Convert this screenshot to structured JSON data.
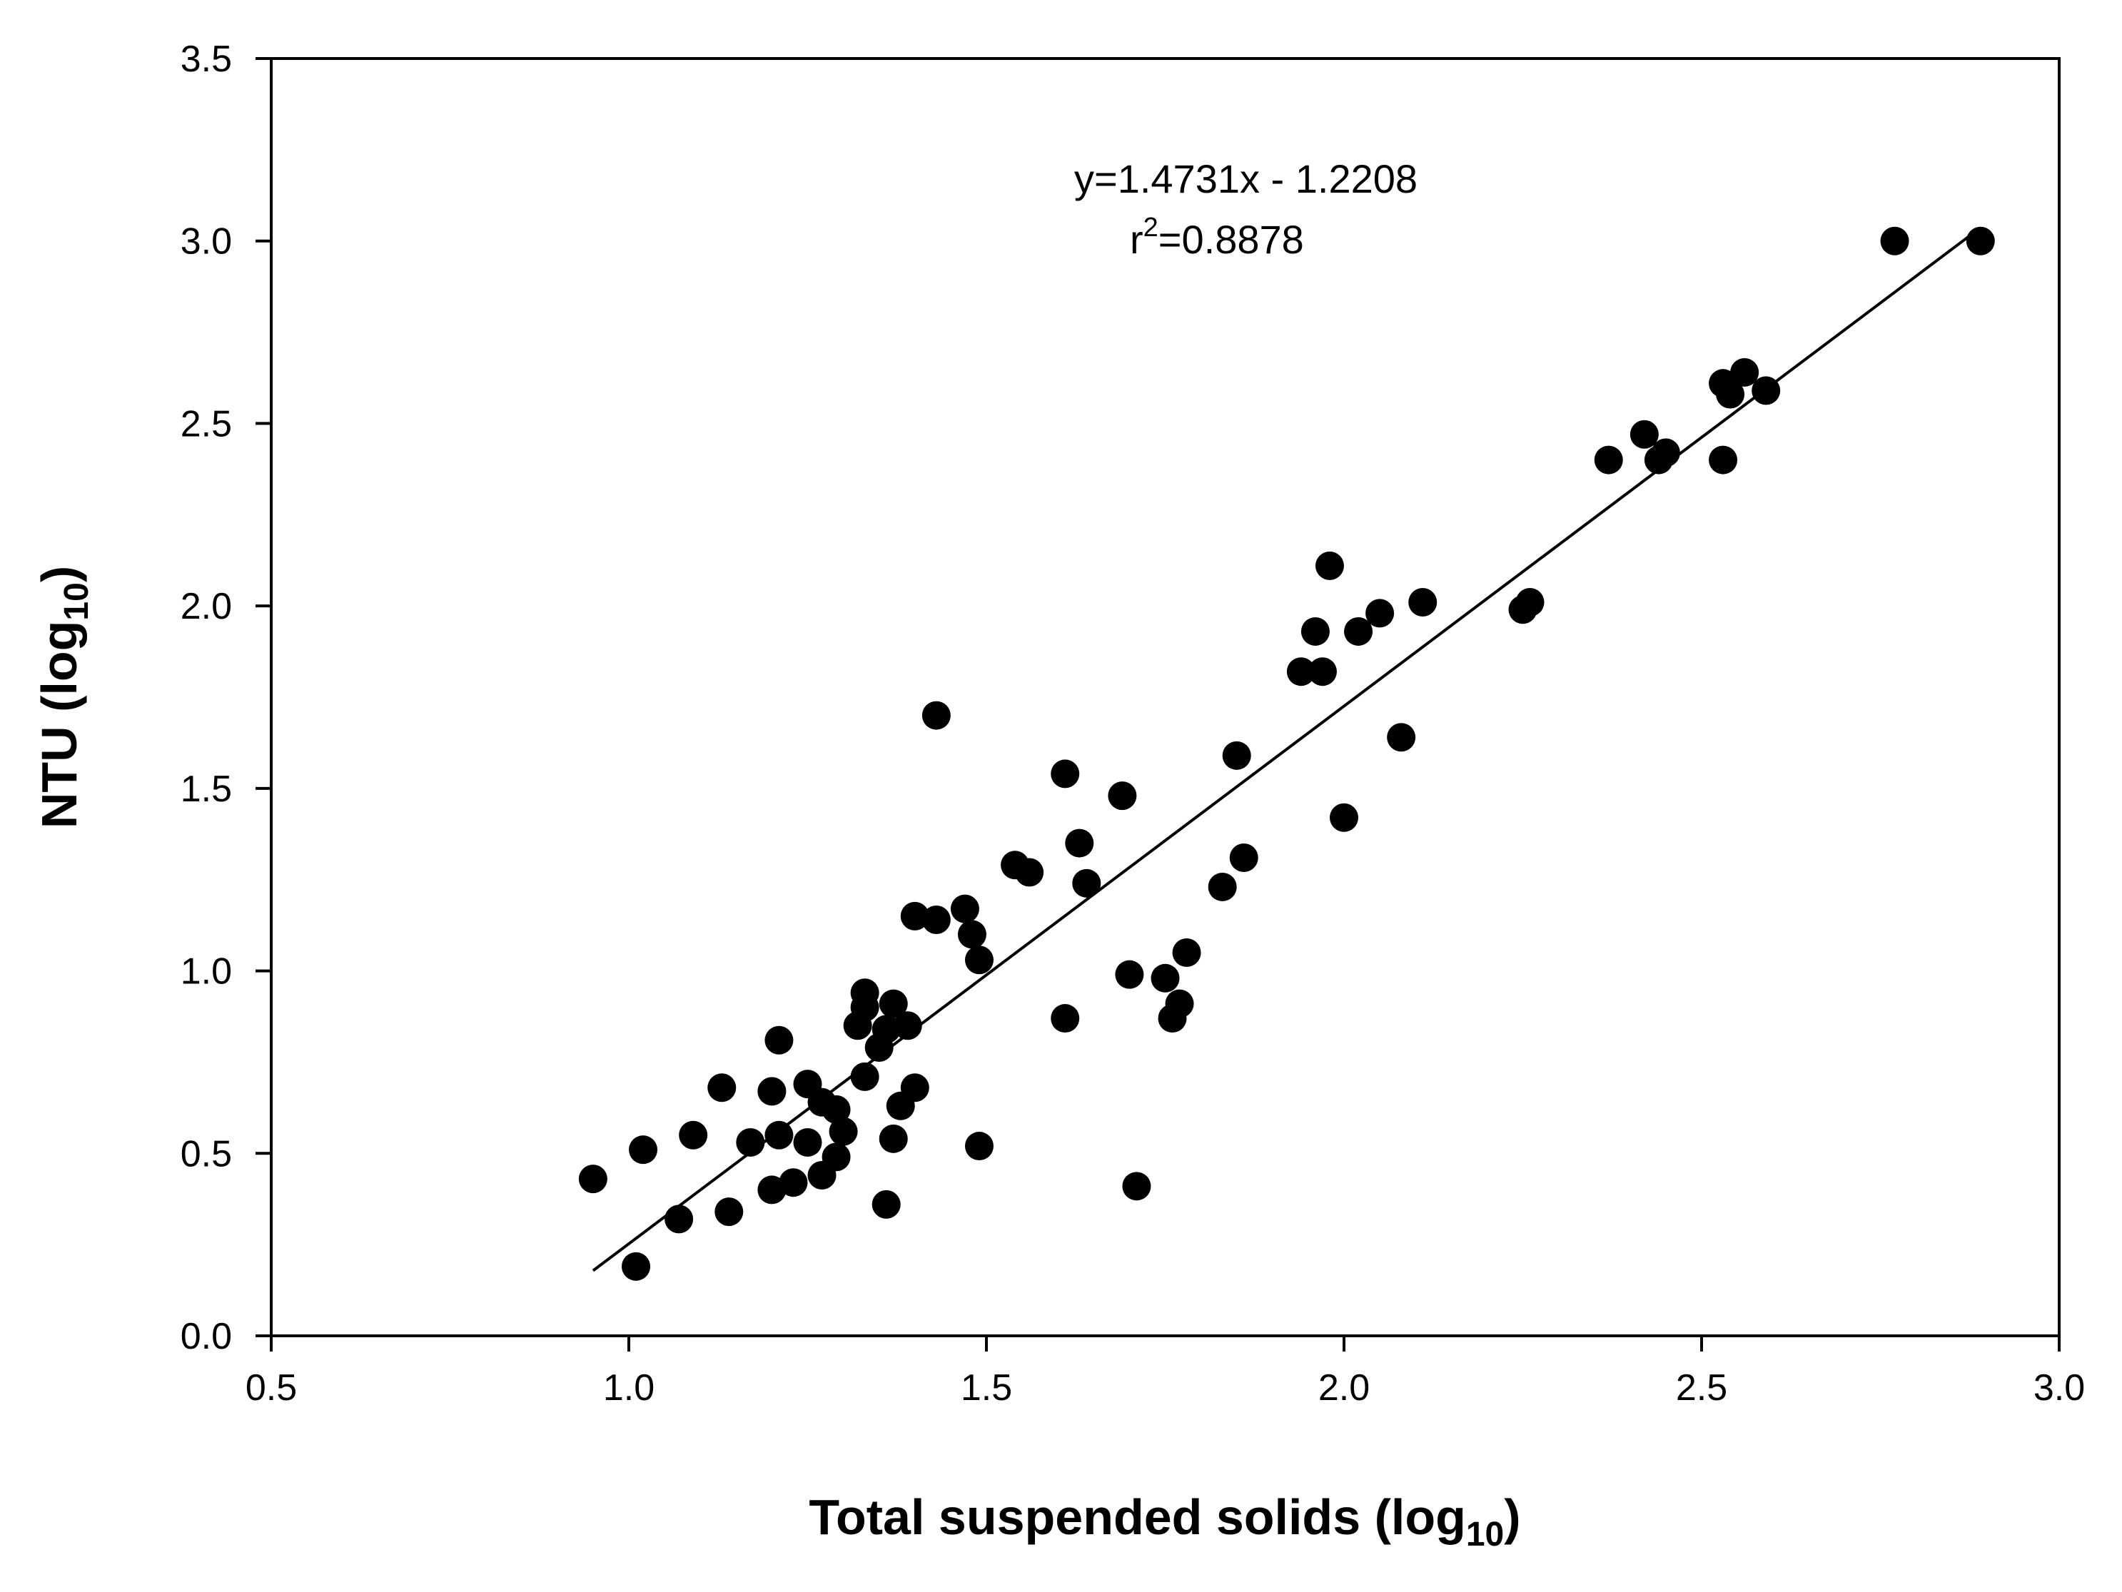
{
  "chart_data": {
    "type": "scatter",
    "xlabel": {
      "main": "Total suspended solids (log",
      "sub": "10",
      "close": ")"
    },
    "ylabel": {
      "main": "NTU (log",
      "sub": "10",
      "close": ")"
    },
    "xlim": [
      0.5,
      3.0
    ],
    "ylim": [
      0.0,
      3.5
    ],
    "x_ticks": [
      0.5,
      1.0,
      1.5,
      2.0,
      2.5,
      3.0
    ],
    "x_tick_labels": [
      "0.5",
      "1.0",
      "1.5",
      "2.0",
      "2.5",
      "3.0"
    ],
    "y_ticks": [
      0.0,
      0.5,
      1.0,
      1.5,
      2.0,
      2.5,
      3.0,
      3.5
    ],
    "y_tick_labels": [
      "0.0",
      "0.5",
      "1.0",
      "1.5",
      "2.0",
      "2.5",
      "3.0",
      "3.5"
    ],
    "grid": false,
    "annotation": {
      "equation": "y=1.4731x - 1.2208",
      "r2_prefix": "r",
      "r2_sup": "2",
      "r2_value": "=0.8878"
    },
    "regression": {
      "slope": 1.4731,
      "intercept": -1.2208,
      "x_range": [
        0.95,
        2.89
      ]
    },
    "marker_color": "#000000",
    "points": [
      [
        0.95,
        0.43
      ],
      [
        1.01,
        0.19
      ],
      [
        1.02,
        0.51
      ],
      [
        1.07,
        0.32
      ],
      [
        1.09,
        0.55
      ],
      [
        1.13,
        0.68
      ],
      [
        1.14,
        0.34
      ],
      [
        1.17,
        0.53
      ],
      [
        1.2,
        0.67
      ],
      [
        1.2,
        0.4
      ],
      [
        1.21,
        0.81
      ],
      [
        1.21,
        0.55
      ],
      [
        1.23,
        0.42
      ],
      [
        1.25,
        0.69
      ],
      [
        1.25,
        0.53
      ],
      [
        1.27,
        0.64
      ],
      [
        1.27,
        0.44
      ],
      [
        1.29,
        0.62
      ],
      [
        1.29,
        0.49
      ],
      [
        1.3,
        0.56
      ],
      [
        1.32,
        0.85
      ],
      [
        1.33,
        0.94
      ],
      [
        1.33,
        0.9
      ],
      [
        1.33,
        0.71
      ],
      [
        1.35,
        0.79
      ],
      [
        1.36,
        0.84
      ],
      [
        1.36,
        0.36
      ],
      [
        1.37,
        0.91
      ],
      [
        1.37,
        0.54
      ],
      [
        1.38,
        0.63
      ],
      [
        1.39,
        0.85
      ],
      [
        1.4,
        1.15
      ],
      [
        1.4,
        0.68
      ],
      [
        1.43,
        1.7
      ],
      [
        1.43,
        1.14
      ],
      [
        1.47,
        1.17
      ],
      [
        1.48,
        1.1
      ],
      [
        1.49,
        1.03
      ],
      [
        1.49,
        0.52
      ],
      [
        1.54,
        1.29
      ],
      [
        1.56,
        1.27
      ],
      [
        1.61,
        1.54
      ],
      [
        1.61,
        0.87
      ],
      [
        1.63,
        1.35
      ],
      [
        1.64,
        1.24
      ],
      [
        1.69,
        1.48
      ],
      [
        1.7,
        0.99
      ],
      [
        1.71,
        0.41
      ],
      [
        1.75,
        0.98
      ],
      [
        1.76,
        0.87
      ],
      [
        1.77,
        0.91
      ],
      [
        1.78,
        1.05
      ],
      [
        1.83,
        1.23
      ],
      [
        1.85,
        1.59
      ],
      [
        1.86,
        1.31
      ],
      [
        1.94,
        1.82
      ],
      [
        1.96,
        1.93
      ],
      [
        1.97,
        1.82
      ],
      [
        1.98,
        2.11
      ],
      [
        2.0,
        1.42
      ],
      [
        2.02,
        1.93
      ],
      [
        2.05,
        1.98
      ],
      [
        2.08,
        1.64
      ],
      [
        2.11,
        2.01
      ],
      [
        2.25,
        1.99
      ],
      [
        2.26,
        2.01
      ],
      [
        2.37,
        2.4
      ],
      [
        2.42,
        2.47
      ],
      [
        2.44,
        2.4
      ],
      [
        2.45,
        2.42
      ],
      [
        2.53,
        2.61
      ],
      [
        2.53,
        2.4
      ],
      [
        2.54,
        2.58
      ],
      [
        2.56,
        2.64
      ],
      [
        2.59,
        2.59
      ],
      [
        2.77,
        3.0
      ],
      [
        2.89,
        3.0
      ]
    ]
  }
}
